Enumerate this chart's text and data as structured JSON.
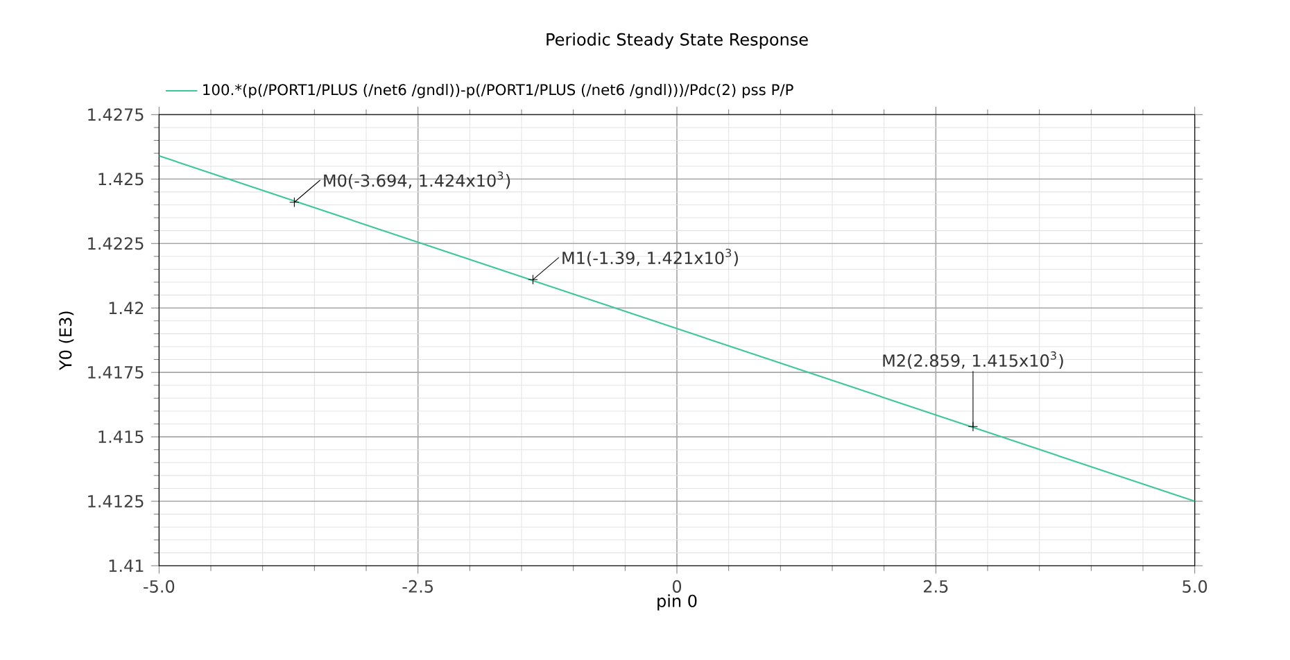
{
  "chart_data": {
    "type": "line",
    "title": "Periodic Steady State Response",
    "xlabel": "pin 0",
    "ylabel": "Y0 (E3)",
    "series": [
      {
        "name": "100.*(p(/PORT1/PLUS (/net6 /gndl))-p(/PORT1/PLUS (/net6 /gndl)))/Pdc(2)  pss P/P",
        "color": "#3cc89a",
        "x": [
          -5.0,
          5.0
        ],
        "values": [
          1.4259,
          1.4125
        ]
      }
    ],
    "xlim": [
      -5.0,
      5.0
    ],
    "ylim": [
      1.41,
      1.4275
    ],
    "xticks": [
      {
        "value": -5.0,
        "label": "-5.0"
      },
      {
        "value": -2.5,
        "label": "-2.5"
      },
      0,
      {
        "value": 2.5,
        "label": "2.5"
      },
      {
        "value": 5.0,
        "label": "5.0"
      }
    ],
    "yticks": [
      1.41,
      1.4125,
      1.415,
      1.4175,
      1.42,
      1.4225,
      1.425,
      1.4275
    ],
    "annotations": [
      {
        "text": "M0(-3.694, 1.424x10$^{3}$)",
        "x": -3.694,
        "y": 1.4241
      },
      {
        "text": "M1(-1.39, 1.421x10$^{3}$)",
        "x": -1.39,
        "y": 1.4211
      },
      {
        "text": "M2(2.859, 1.415x10$^{3}$)",
        "x": 2.859,
        "y": 1.4154
      }
    ],
    "grid": true,
    "legend": "top left",
    "marker": "none",
    "line_style": "solid"
  }
}
